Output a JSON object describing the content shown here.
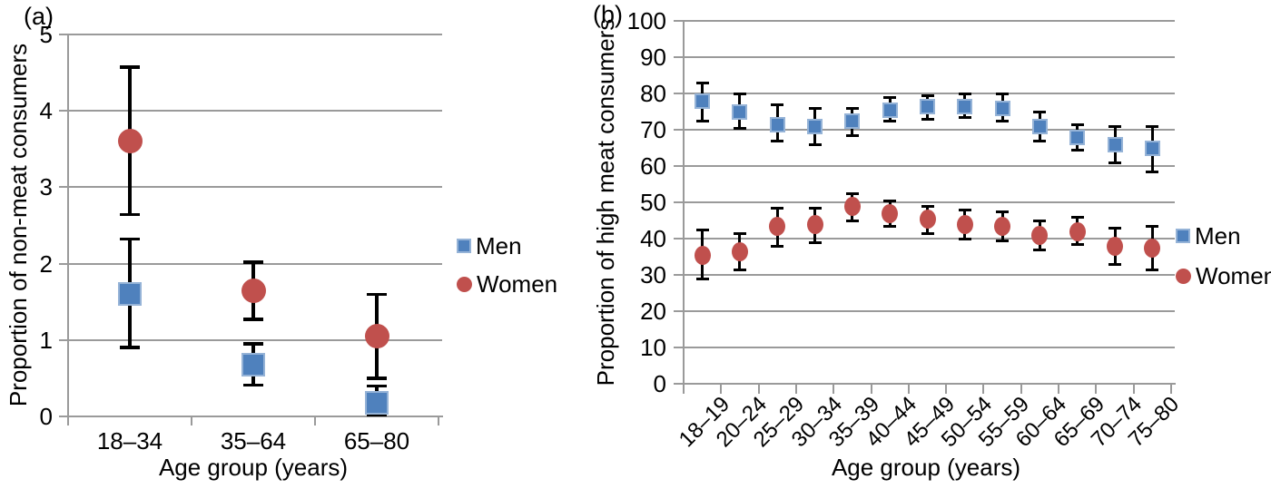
{
  "figure": {
    "background": "#ffffff",
    "colors": {
      "men": "#4f81bd",
      "men_border": "#95b3d7",
      "women": "#c0504d",
      "grid": "#9a9a9a",
      "error_bar": "#000000",
      "text": "#000000"
    }
  },
  "chart_data": [
    {
      "id": "a",
      "type": "scatter",
      "panel_label": "(a)",
      "xlabel": "Age group (years)",
      "ylabel": "Proportion of non-meat consumers",
      "ylim": [
        0,
        5
      ],
      "yticks": [
        0,
        1,
        2,
        3,
        4,
        5
      ],
      "grid": true,
      "legend_position": "right",
      "categories": [
        "18–34",
        "35–64",
        "65–80"
      ],
      "series": [
        {
          "name": "Men",
          "marker": "square",
          "color": "#4f81bd",
          "border_color": "#95b3d7",
          "values": [
            1.6,
            0.68,
            0.18
          ],
          "ci_low": [
            0.9,
            0.41,
            0.02
          ],
          "ci_high": [
            2.32,
            0.95,
            0.4
          ]
        },
        {
          "name": "Women",
          "marker": "circle",
          "color": "#c0504d",
          "values": [
            3.6,
            1.64,
            1.05
          ],
          "ci_low": [
            2.64,
            1.27,
            0.5
          ],
          "ci_high": [
            4.57,
            2.02,
            1.6
          ]
        }
      ]
    },
    {
      "id": "b",
      "type": "scatter",
      "panel_label": "(b)",
      "xlabel": "Age group (years)",
      "ylabel": "Proportion of high meat consumers",
      "ylim": [
        0,
        100
      ],
      "yticks": [
        0,
        10,
        20,
        30,
        40,
        50,
        60,
        70,
        80,
        90,
        100
      ],
      "grid": true,
      "legend_position": "right",
      "categories": [
        "18–19",
        "20–24",
        "25–29",
        "30–34",
        "35–39",
        "40–44",
        "45–49",
        "50–54",
        "55–59",
        "60–64",
        "65–69",
        "70–74",
        "75–80"
      ],
      "series": [
        {
          "name": "Men",
          "marker": "square",
          "color": "#4f81bd",
          "border_color": "#95b3d7",
          "values": [
            78,
            75,
            71.5,
            71,
            72.5,
            75.5,
            76.5,
            76.5,
            76,
            71,
            68,
            66,
            65
          ],
          "ci_low": [
            72.5,
            70.5,
            67,
            66,
            68.5,
            72.5,
            73,
            73.5,
            72.5,
            67,
            64.5,
            61,
            58.5
          ],
          "ci_high": [
            83,
            80,
            77,
            76,
            76,
            79,
            79.5,
            80,
            80,
            75,
            71.5,
            71,
            71
          ]
        },
        {
          "name": "Women",
          "marker": "circle",
          "color": "#c0504d",
          "values": [
            35.5,
            36.5,
            43.5,
            44,
            49,
            47,
            45.5,
            44,
            43.5,
            41,
            42,
            38,
            37.5
          ],
          "ci_low": [
            29,
            31.5,
            38,
            39,
            45,
            43.5,
            41.5,
            40,
            39.5,
            37,
            38.5,
            33,
            31.5
          ],
          "ci_high": [
            42.5,
            41.5,
            48.5,
            48.5,
            52.5,
            50.5,
            49,
            48,
            47.5,
            45,
            46,
            43,
            43.5
          ]
        }
      ]
    }
  ]
}
